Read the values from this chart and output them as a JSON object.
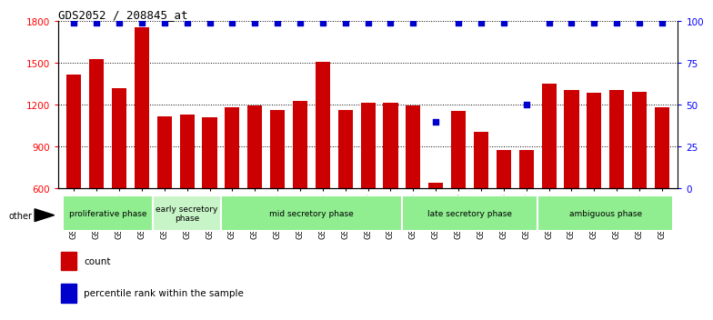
{
  "title": "GDS2052 / 208845_at",
  "samples": [
    "GSM109814",
    "GSM109815",
    "GSM109816",
    "GSM109817",
    "GSM109820",
    "GSM109821",
    "GSM109822",
    "GSM109824",
    "GSM109825",
    "GSM109826",
    "GSM109827",
    "GSM109828",
    "GSM109829",
    "GSM109830",
    "GSM109831",
    "GSM109834",
    "GSM109835",
    "GSM109836",
    "GSM109837",
    "GSM109838",
    "GSM109839",
    "GSM109818",
    "GSM109819",
    "GSM109823",
    "GSM109832",
    "GSM109833",
    "GSM109840"
  ],
  "counts": [
    1420,
    1530,
    1320,
    1760,
    1115,
    1130,
    1110,
    1185,
    1195,
    1165,
    1230,
    1510,
    1165,
    1215,
    1215,
    1195,
    640,
    1160,
    1010,
    875,
    880,
    1355,
    1310,
    1285,
    1310,
    1295,
    1185
  ],
  "percentiles": [
    99,
    99,
    99,
    99,
    99,
    99,
    99,
    99,
    99,
    99,
    99,
    99,
    99,
    99,
    99,
    99,
    40,
    99,
    99,
    99,
    50,
    99,
    99,
    99,
    99,
    99,
    99
  ],
  "phase_groups": [
    {
      "label": "proliferative phase",
      "start": 0,
      "end": 3,
      "color": "#90EE90"
    },
    {
      "label": "early secretory\nphase",
      "start": 4,
      "end": 6,
      "color": "#c8f5c8"
    },
    {
      "label": "mid secretory phase",
      "start": 7,
      "end": 14,
      "color": "#90EE90"
    },
    {
      "label": "late secretory phase",
      "start": 15,
      "end": 20,
      "color": "#90EE90"
    },
    {
      "label": "ambiguous phase",
      "start": 21,
      "end": 26,
      "color": "#90EE90"
    }
  ],
  "bar_color": "#cc0000",
  "percentile_color": "#0000cc",
  "ylim_left": [
    600,
    1800
  ],
  "ylim_right": [
    0,
    100
  ],
  "yticks_left": [
    600,
    900,
    1200,
    1500,
    1800
  ],
  "yticks_right": [
    0,
    25,
    50,
    75,
    100
  ],
  "bar_width": 0.65,
  "background_color": "#ffffff"
}
